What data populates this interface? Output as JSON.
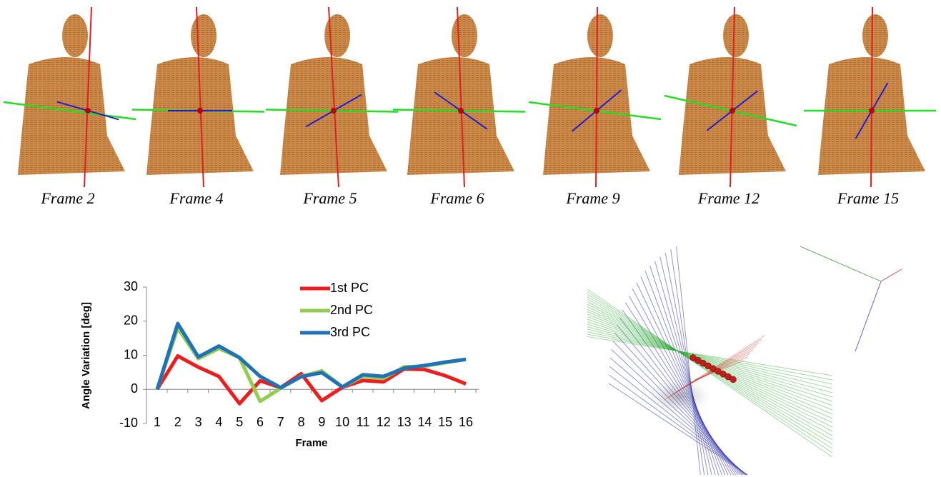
{
  "frames": [
    "Frame 2",
    "Frame 4",
    "Frame 5",
    "Frame 6",
    "Frame 9",
    "Frame 12",
    "Frame 15"
  ],
  "chart_data": {
    "type": "line",
    "xlabel": "Frame",
    "ylabel": "Angle Variation [deg]",
    "categories": [
      "1",
      "2",
      "3",
      "4",
      "5",
      "6",
      "7",
      "8",
      "9",
      "10",
      "11",
      "12",
      "13",
      "14",
      "15",
      "16"
    ],
    "series": [
      {
        "name": "1st PC",
        "color": "#ee1c1c",
        "values": [
          0,
          9.8,
          6.5,
          3.8,
          -4.2,
          2.5,
          0.5,
          4.6,
          -3.3,
          0.6,
          2.6,
          2.2,
          6,
          5.8,
          4,
          1.6
        ]
      },
      {
        "name": "2nd PC",
        "color": "#92cd50",
        "values": [
          0,
          18,
          9,
          12,
          9.3,
          -3.5,
          0.3,
          3.8,
          5.4,
          0.7,
          3.8,
          3.2,
          6.6,
          6.8,
          7.8,
          8.8
        ]
      },
      {
        "name": "3rd PC",
        "color": "#1f72b8",
        "values": [
          0,
          19.3,
          9.5,
          12.7,
          9.3,
          3.8,
          0.5,
          3.7,
          4.9,
          0.7,
          4.3,
          3.8,
          6.2,
          7,
          8,
          8.8
        ]
      }
    ],
    "ylim": [
      -10,
      30
    ],
    "yticks": [
      -10,
      0,
      10,
      20,
      30
    ]
  }
}
